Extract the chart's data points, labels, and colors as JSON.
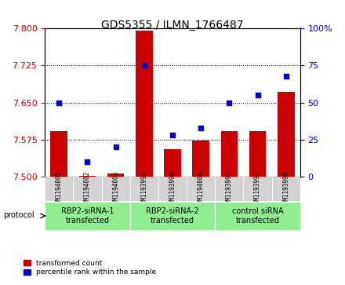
{
  "title": "GDS5355 / ILMN_1766487",
  "samples": [
    "GSM1194001",
    "GSM1194002",
    "GSM1194003",
    "GSM1193996",
    "GSM1193998",
    "GSM1194000",
    "GSM1193995",
    "GSM1193997",
    "GSM1193999"
  ],
  "red_values": [
    7.593,
    7.502,
    7.507,
    7.795,
    7.555,
    7.573,
    7.592,
    7.592,
    7.672
  ],
  "blue_values": [
    50,
    10,
    20,
    75,
    28,
    33,
    50,
    55,
    68
  ],
  "groups": [
    {
      "label": "RBP2-siRNA-1\ntransfected",
      "start": 0,
      "end": 3,
      "color": "#90ee90"
    },
    {
      "label": "RBP2-siRNA-2\ntransfected",
      "start": 3,
      "end": 6,
      "color": "#90ee90"
    },
    {
      "label": "control siRNA\ntransfected",
      "start": 6,
      "end": 9,
      "color": "#90ee90"
    }
  ],
  "ylim_left": [
    7.5,
    7.8
  ],
  "ylim_right": [
    0,
    100
  ],
  "yticks_left": [
    7.5,
    7.575,
    7.65,
    7.725,
    7.8
  ],
  "yticks_right": [
    0,
    25,
    50,
    75,
    100
  ],
  "bar_color": "#cc0000",
  "dot_color": "#0000cc",
  "bg_color": "#d3d3d3",
  "plot_bg": "#ffffff"
}
